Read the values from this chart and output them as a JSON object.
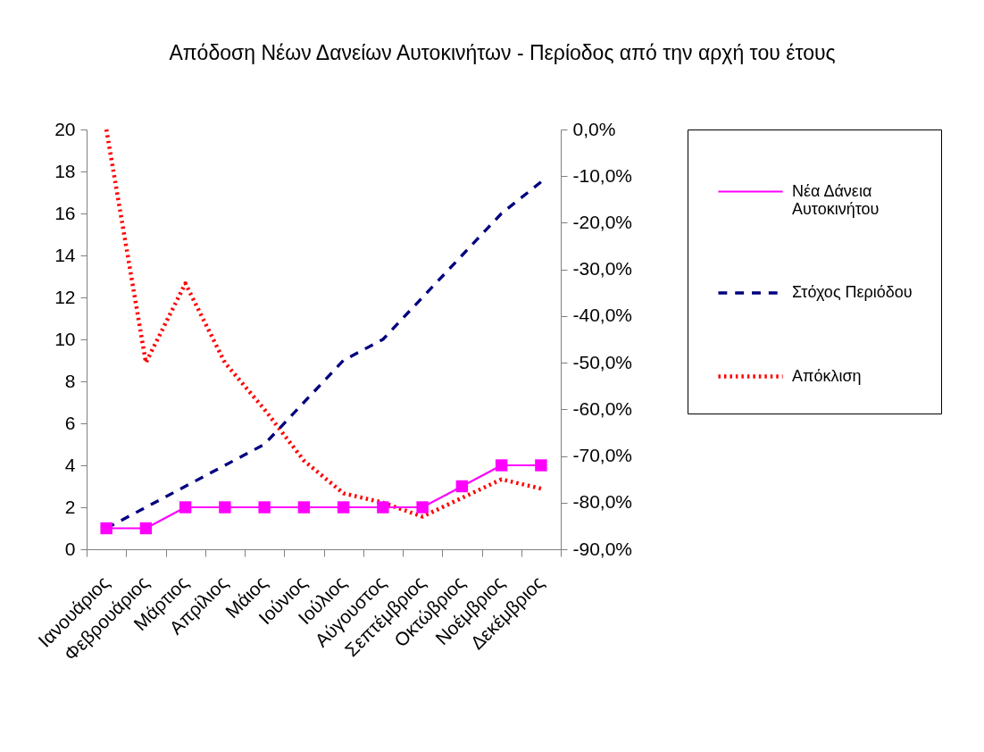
{
  "chart_data": {
    "type": "line",
    "title": "Απόδοση Νέων Δανείων Αυτοκινήτων - Περίοδος από την αρχή του έτους",
    "categories": [
      "Ιανουάριος",
      "Φεβρουάριος",
      "Μάρτιος",
      "Απρίλιος",
      "Μάιος",
      "Ιούνιος",
      "Ιούλιος",
      "Αύγουστος",
      "Σεπτέμβριος",
      "Οκτώβριος",
      "Νοέμβριος",
      "Δεκέμβριος"
    ],
    "series": [
      {
        "name": "Νέα Δάνεια Αυτοκινήτου",
        "color": "#ff00ff",
        "values": [
          1,
          1,
          2,
          2,
          2,
          2,
          2,
          2,
          2,
          3,
          4,
          4
        ],
        "marker": "square",
        "line_style": "solid"
      },
      {
        "name": "Στόχος Περιόδου",
        "color": "#000080",
        "values": [
          1,
          2,
          3,
          4,
          5,
          7,
          9,
          10,
          12,
          14,
          16,
          17.5
        ],
        "marker": "none",
        "line_style": "dashed"
      },
      {
        "name": "Απόκλιση",
        "color": "#ff0000",
        "values": [
          0,
          -50,
          -33,
          -50,
          -60,
          -71,
          -78,
          -80,
          -83,
          -79,
          -75,
          -77
        ],
        "axis": "y2",
        "marker": "none",
        "line_style": "dotted"
      }
    ],
    "ylim": [
      0,
      20
    ],
    "yticks": [
      0,
      2,
      4,
      6,
      8,
      10,
      12,
      14,
      16,
      18,
      20
    ],
    "y2lim": [
      -90,
      0
    ],
    "y2ticks": [
      {
        "value": 0,
        "label": "0,0%"
      },
      {
        "value": -10,
        "label": "-10,0%"
      },
      {
        "value": -20,
        "label": "-20,0%"
      },
      {
        "value": -30,
        "label": "-30,0%"
      },
      {
        "value": -40,
        "label": "-40,0%"
      },
      {
        "value": -50,
        "label": "-50,0%"
      },
      {
        "value": -60,
        "label": "-60,0%"
      },
      {
        "value": -70,
        "label": "-70,0%"
      },
      {
        "value": -80,
        "label": "-80,0%"
      },
      {
        "value": -90,
        "label": "-90,0%"
      }
    ],
    "grid": false,
    "legend": "right"
  }
}
